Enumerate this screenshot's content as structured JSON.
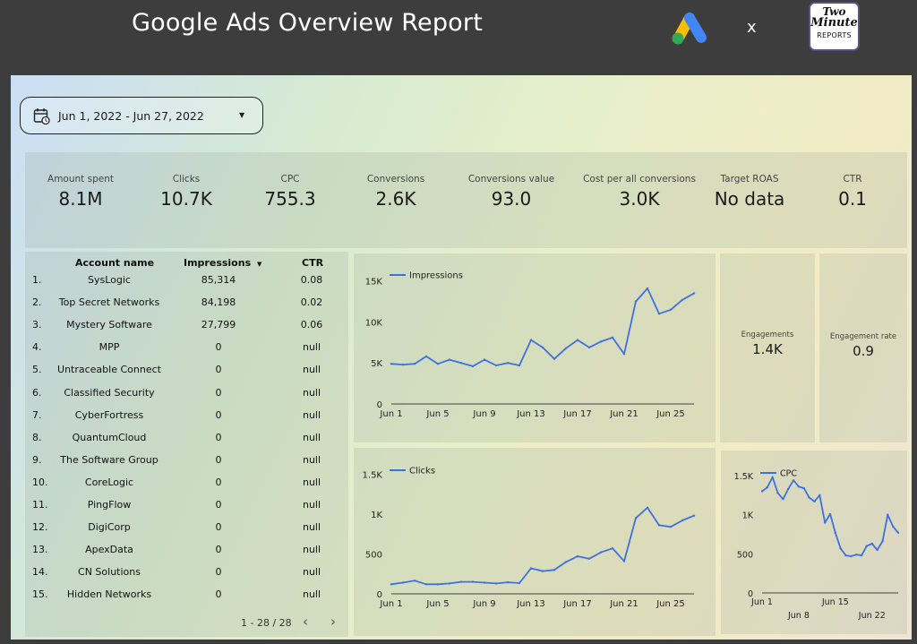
{
  "header": {
    "title": "Google Ads Overview Report",
    "separator": "x",
    "partner_logo": {
      "line1": "Two",
      "line2": "Minute",
      "line3": "REPORTS"
    }
  },
  "date_range": {
    "label": "Jun 1, 2022 - Jun 27, 2022"
  },
  "kpis": [
    {
      "label": "Amount spent",
      "value": "8.1M"
    },
    {
      "label": "Clicks",
      "value": "10.7K"
    },
    {
      "label": "CPC",
      "value": "755.3"
    },
    {
      "label": "Conversions",
      "value": "2.6K"
    },
    {
      "label": "Conversions value",
      "value": "93.0"
    },
    {
      "label": "Cost per all conversions",
      "value": "3.0K"
    },
    {
      "label": "Target ROAS",
      "value": "No data"
    },
    {
      "label": "CTR",
      "value": "0.1"
    }
  ],
  "accounts_table": {
    "headers": {
      "name": "Account name",
      "impressions": "Impressions",
      "ctr": "CTR"
    },
    "rows": [
      {
        "n": "1.",
        "name": "SysLogic",
        "impressions": "85,314",
        "ctr": "0.08"
      },
      {
        "n": "2.",
        "name": "Top Secret Networks",
        "impressions": "84,198",
        "ctr": "0.02"
      },
      {
        "n": "3.",
        "name": "Mystery Software",
        "impressions": "27,799",
        "ctr": "0.06"
      },
      {
        "n": "4.",
        "name": "MPP",
        "impressions": "0",
        "ctr": "null"
      },
      {
        "n": "5.",
        "name": "Untraceable Connect",
        "impressions": "0",
        "ctr": "null"
      },
      {
        "n": "6.",
        "name": "Classified Security",
        "impressions": "0",
        "ctr": "null"
      },
      {
        "n": "7.",
        "name": "CyberFortress",
        "impressions": "0",
        "ctr": "null"
      },
      {
        "n": "8.",
        "name": "QuantumCloud",
        "impressions": "0",
        "ctr": "null"
      },
      {
        "n": "9.",
        "name": "The Software Group",
        "impressions": "0",
        "ctr": "null"
      },
      {
        "n": "10.",
        "name": "CoreLogic",
        "impressions": "0",
        "ctr": "null"
      },
      {
        "n": "11.",
        "name": "PingFlow",
        "impressions": "0",
        "ctr": "null"
      },
      {
        "n": "12.",
        "name": "DigiCorp",
        "impressions": "0",
        "ctr": "null"
      },
      {
        "n": "13.",
        "name": "ApexData",
        "impressions": "0",
        "ctr": "null"
      },
      {
        "n": "14.",
        "name": "CN Solutions",
        "impressions": "0",
        "ctr": "null"
      },
      {
        "n": "15.",
        "name": "Hidden Networks",
        "impressions": "0",
        "ctr": "null"
      }
    ],
    "pagination": "1 - 28 / 28"
  },
  "engagements": {
    "label": "Engagements",
    "value": "1.4K"
  },
  "engagement_rate": {
    "label": "Engagement rate",
    "value": "0.9"
  },
  "colors": {
    "series": "#3d72e0"
  },
  "chart_data": [
    {
      "type": "line",
      "series": [
        {
          "name": "Impressions",
          "values": [
            4900,
            4800,
            4900,
            5800,
            4900,
            5400,
            5000,
            4600,
            5400,
            4700,
            5000,
            4700,
            7800,
            6900,
            5500,
            6800,
            7800,
            6900,
            7600,
            8100,
            6100,
            12500,
            14100,
            11000,
            11500,
            12700,
            13500
          ]
        }
      ],
      "x": [
        "Jun 1",
        "Jun 2",
        "Jun 3",
        "Jun 4",
        "Jun 5",
        "Jun 6",
        "Jun 7",
        "Jun 8",
        "Jun 9",
        "Jun 10",
        "Jun 11",
        "Jun 12",
        "Jun 13",
        "Jun 14",
        "Jun 15",
        "Jun 16",
        "Jun 17",
        "Jun 18",
        "Jun 19",
        "Jun 20",
        "Jun 21",
        "Jun 22",
        "Jun 23",
        "Jun 24",
        "Jun 25",
        "Jun 26",
        "Jun 27"
      ],
      "x_ticks": [
        "Jun 1",
        "Jun 5",
        "Jun 9",
        "Jun 13",
        "Jun 17",
        "Jun 21",
        "Jun 25"
      ],
      "y_ticks": [
        0,
        5000,
        10000,
        15000
      ],
      "y_tick_labels": [
        "0",
        "5K",
        "10K",
        "15K"
      ],
      "ylim": [
        0,
        16500
      ],
      "legend": "top-left"
    },
    {
      "type": "line",
      "series": [
        {
          "name": "Clicks",
          "values": [
            120,
            140,
            165,
            120,
            120,
            130,
            150,
            150,
            140,
            130,
            145,
            135,
            320,
            285,
            300,
            400,
            470,
            440,
            520,
            570,
            410,
            950,
            1080,
            860,
            840,
            920,
            980
          ]
        }
      ],
      "x": [
        "Jun 1",
        "Jun 2",
        "Jun 3",
        "Jun 4",
        "Jun 5",
        "Jun 6",
        "Jun 7",
        "Jun 8",
        "Jun 9",
        "Jun 10",
        "Jun 11",
        "Jun 12",
        "Jun 13",
        "Jun 14",
        "Jun 15",
        "Jun 16",
        "Jun 17",
        "Jun 18",
        "Jun 19",
        "Jun 20",
        "Jun 21",
        "Jun 22",
        "Jun 23",
        "Jun 24",
        "Jun 25",
        "Jun 26",
        "Jun 27"
      ],
      "x_ticks": [
        "Jun 1",
        "Jun 5",
        "Jun 9",
        "Jun 13",
        "Jun 17",
        "Jun 21",
        "Jun 25"
      ],
      "y_ticks": [
        0,
        500,
        1000,
        1500
      ],
      "y_tick_labels": [
        "0",
        "500",
        "1K",
        "1.5K"
      ],
      "ylim": [
        0,
        1650
      ],
      "legend": "top-left"
    },
    {
      "type": "line",
      "series": [
        {
          "name": "CPC",
          "values": [
            1300,
            1350,
            1480,
            1280,
            1200,
            1330,
            1440,
            1360,
            1340,
            1220,
            1170,
            1250,
            900,
            1010,
            770,
            570,
            480,
            470,
            490,
            480,
            600,
            630,
            550,
            660,
            1000,
            850,
            770
          ]
        }
      ],
      "x": [
        "Jun 1",
        "Jun 2",
        "Jun 3",
        "Jun 4",
        "Jun 5",
        "Jun 6",
        "Jun 7",
        "Jun 8",
        "Jun 9",
        "Jun 10",
        "Jun 11",
        "Jun 12",
        "Jun 13",
        "Jun 14",
        "Jun 15",
        "Jun 16",
        "Jun 17",
        "Jun 18",
        "Jun 19",
        "Jun 20",
        "Jun 21",
        "Jun 22",
        "Jun 23",
        "Jun 24",
        "Jun 25",
        "Jun 26",
        "Jun 27"
      ],
      "x_ticks_top": [
        "Jun 1",
        "Jun 15"
      ],
      "x_ticks_bottom": [
        "Jun 8",
        "Jun 22"
      ],
      "y_ticks": [
        0,
        500,
        1000,
        1500
      ],
      "y_tick_labels": [
        "0",
        "500",
        "1K",
        "1.5K"
      ],
      "ylim": [
        0,
        1650
      ],
      "legend": "top-left"
    }
  ]
}
